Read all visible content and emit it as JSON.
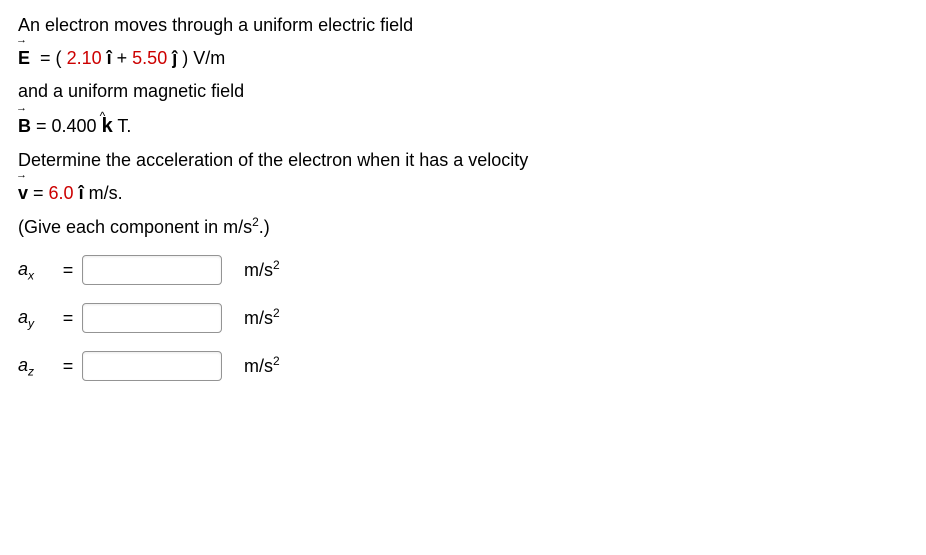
{
  "problem": {
    "line1": "An electron moves through a uniform electric field",
    "E_symbol": "E",
    "E_open": "= (",
    "E_i_val": "2.10",
    "E_i_unit": "î",
    "E_plus": " +  ",
    "E_j_val": "5.50",
    "E_j_unit": "ĵ",
    "E_close": ") V/m",
    "line3": "and a uniform magnetic field",
    "B_symbol": "B",
    "B_eq": " = 0.400 ",
    "B_k": "k",
    "B_close": " T.",
    "line5": "Determine the acceleration of the electron when it has a velocity",
    "v_symbol": "v",
    "v_eq": " =  ",
    "v_val": "6.0",
    "v_unit": " î",
    "v_close": " m/s.",
    "line7_a": "(Give each component in  m/s",
    "line7_b": ".)"
  },
  "answers": [
    {
      "label": "a",
      "sub": "x",
      "unit_base": "m/s"
    },
    {
      "label": "a",
      "sub": "y",
      "unit_base": "m/s"
    },
    {
      "label": "a",
      "sub": "z",
      "unit_base": "m/s"
    }
  ]
}
